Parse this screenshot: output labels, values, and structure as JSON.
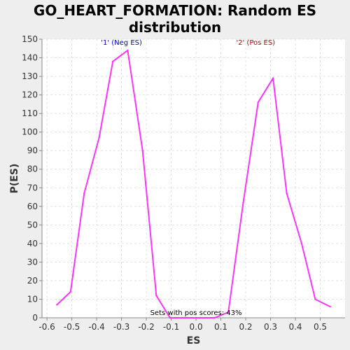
{
  "chart_data": {
    "type": "line",
    "title_line1": "GO_HEART_FORMATION: Random ES",
    "title_line2": "distribution",
    "xlabel": "ES",
    "ylabel": "P(ES)",
    "xlim": [
      -0.62,
      0.6
    ],
    "ylim": [
      0,
      150
    ],
    "xticks": [
      "-0.6",
      "-0.5",
      "-0.4",
      "-0.3",
      "-0.2",
      "-0.1",
      "0.0",
      "0.1",
      "0.2",
      "0.3",
      "0.4",
      "0.5"
    ],
    "xtick_values": [
      -0.6,
      -0.5,
      -0.4,
      -0.3,
      -0.2,
      -0.1,
      0.0,
      0.1,
      0.2,
      0.3,
      0.4,
      0.5
    ],
    "yticks": [
      0,
      10,
      20,
      30,
      40,
      50,
      60,
      70,
      80,
      90,
      100,
      110,
      120,
      130,
      140,
      150
    ],
    "grid": true,
    "series": [
      {
        "color": "#ff33ff",
        "x": [
          -0.56,
          -0.505,
          -0.45,
          -0.39,
          -0.335,
          -0.275,
          -0.215,
          -0.16,
          -0.105,
          -0.045,
          0.015,
          0.075,
          0.13,
          0.19,
          0.25,
          0.31,
          0.365,
          0.425,
          0.48,
          0.54
        ],
        "y": [
          7,
          14,
          67,
          97,
          138,
          144,
          90,
          12,
          0,
          0,
          0,
          0,
          3,
          62,
          116,
          129,
          67,
          40,
          10,
          6
        ]
      }
    ],
    "annotations": [
      {
        "text": "'1' (Neg ES)",
        "x": -0.3,
        "y": 147,
        "color": "#0000cc"
      },
      {
        "text": "'2' (Pos ES)",
        "x": 0.24,
        "y": 147,
        "color": "#cc0000"
      },
      {
        "text": "Sets with pos scores: 43%",
        "x": 0.0,
        "y": 1.5,
        "color": "#000000"
      }
    ]
  }
}
